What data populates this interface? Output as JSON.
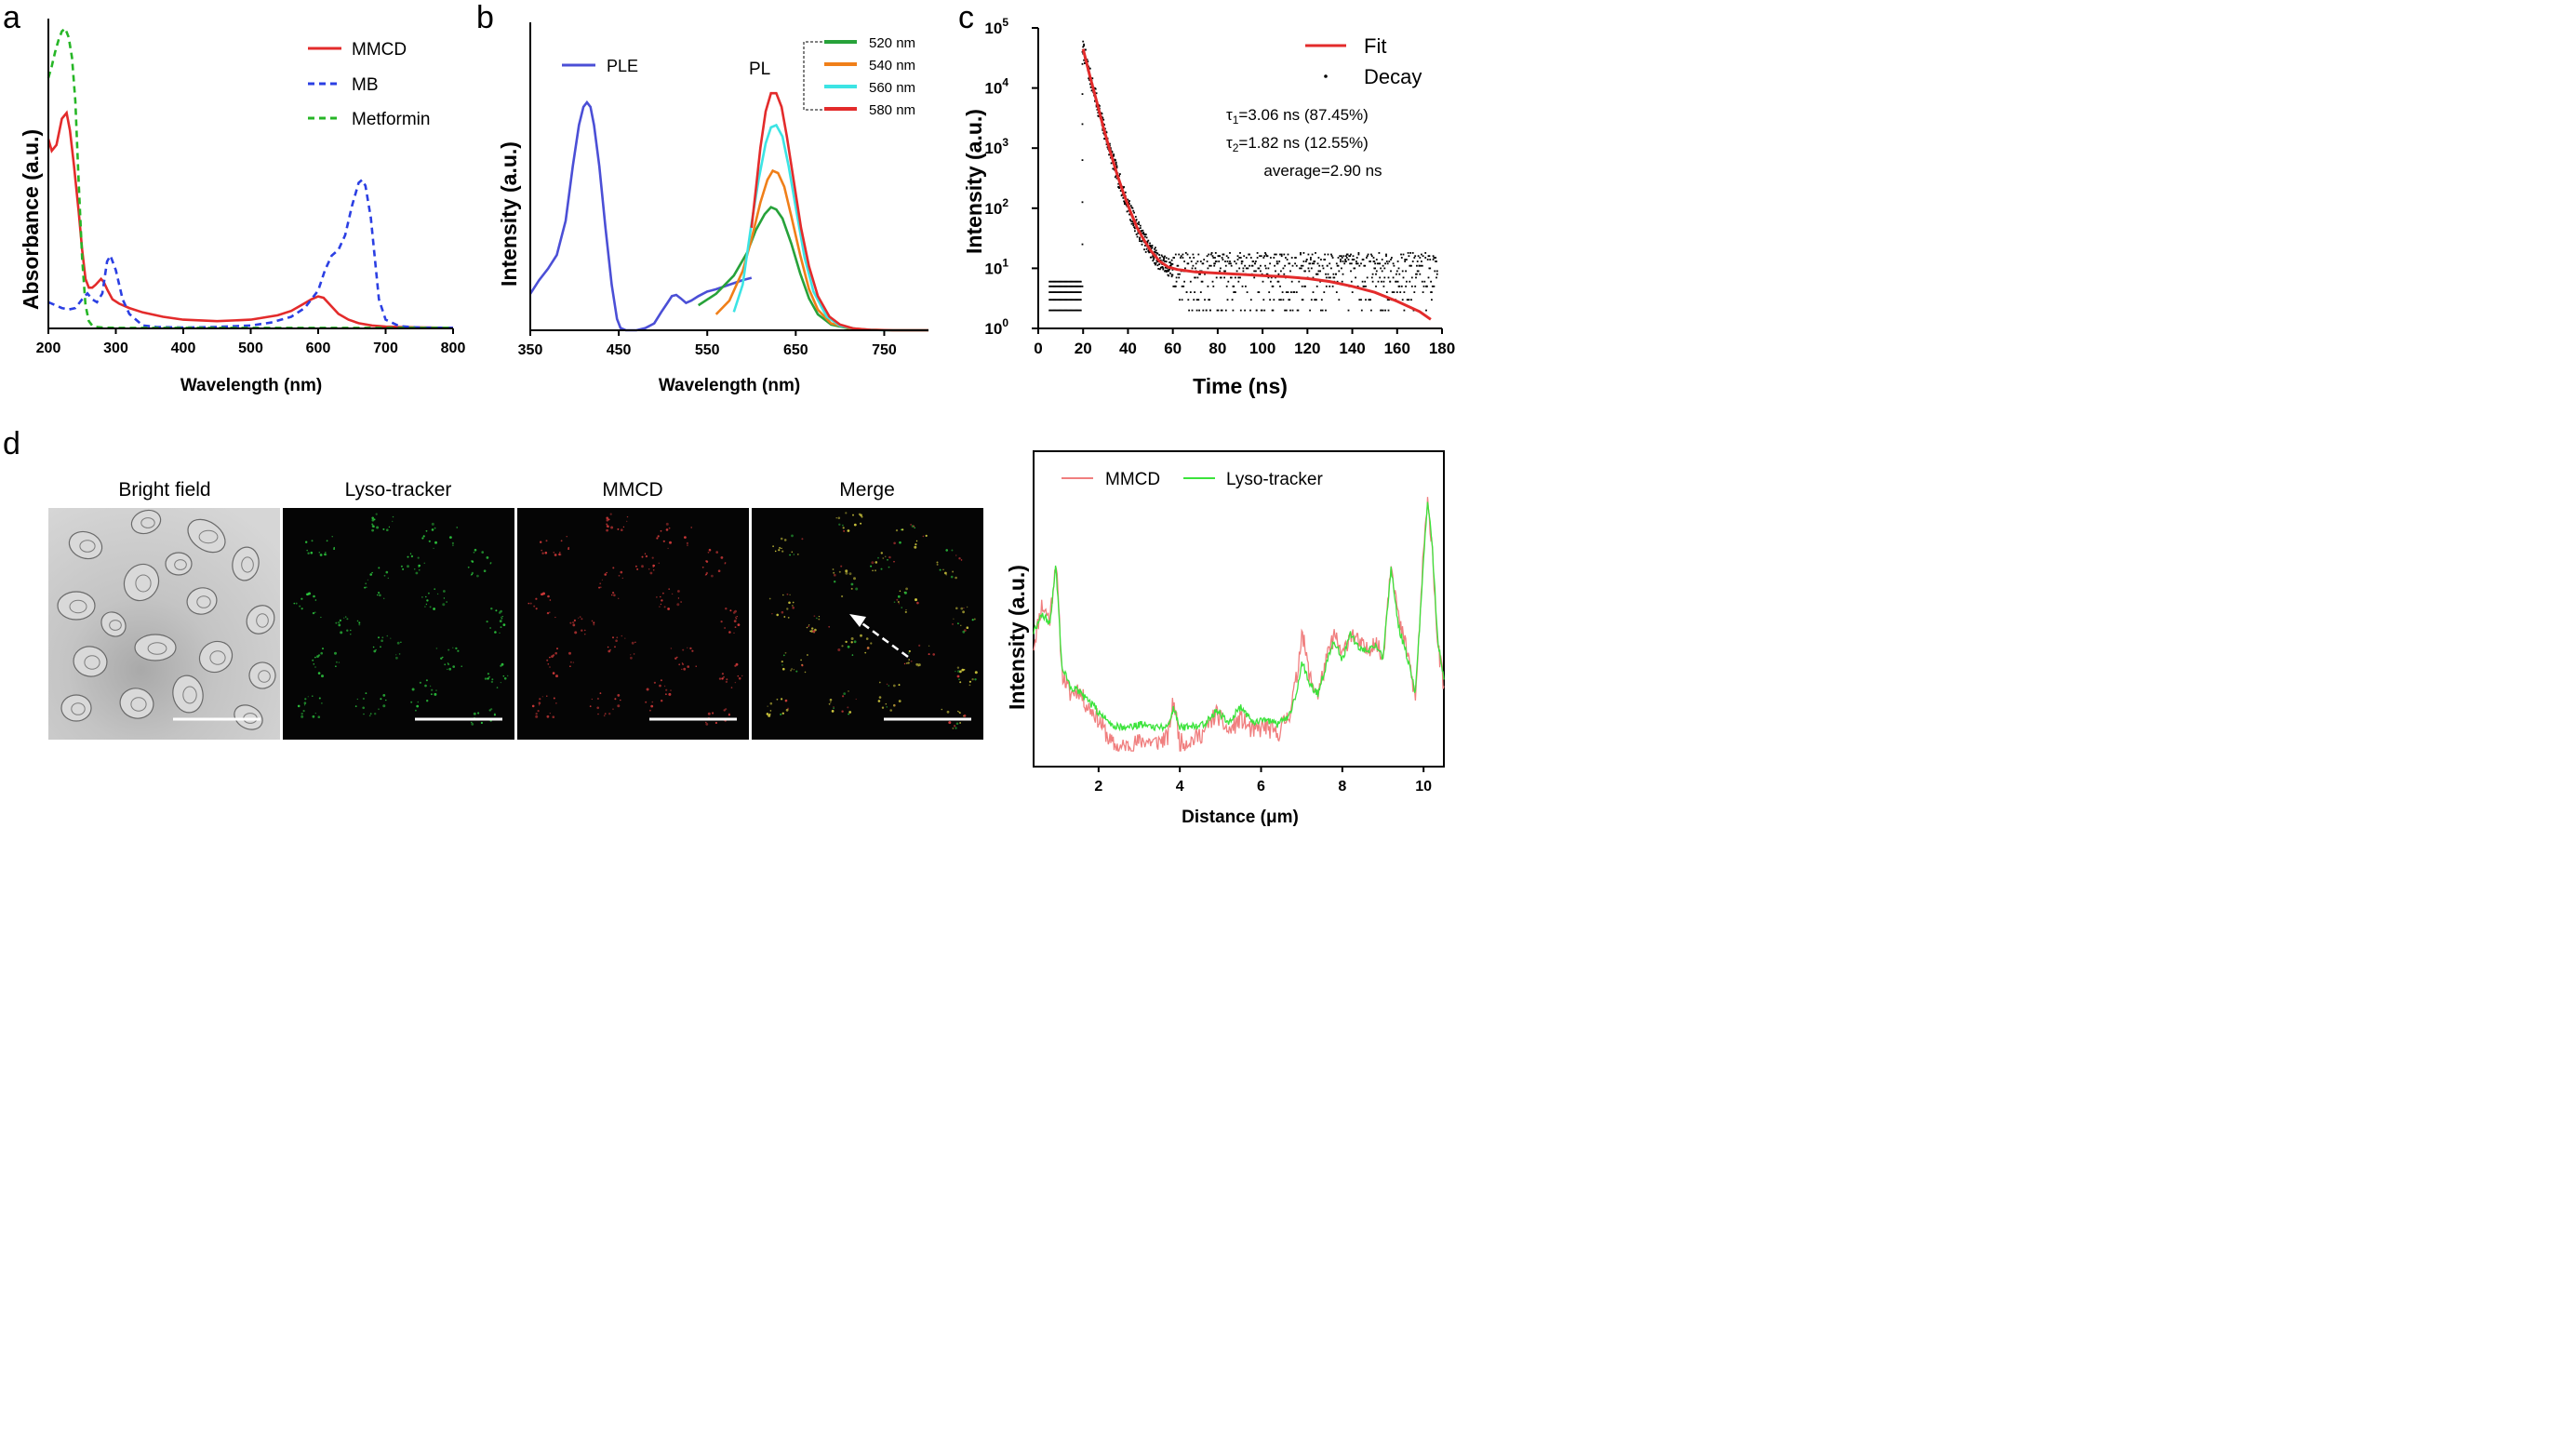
{
  "panel_labels": {
    "a": "a",
    "b": "b",
    "c": "c",
    "d": "d"
  },
  "chart_data": [
    {
      "id": "a",
      "type": "line",
      "xlabel": "Wavelength (nm)",
      "ylabel": "Absorbance (a.u.)",
      "xlim": [
        200,
        800
      ],
      "ylim": [
        0,
        1.0
      ],
      "xticks": [
        "200",
        "300",
        "400",
        "500",
        "600",
        "700",
        "800"
      ],
      "legend_position": "top-right",
      "series": [
        {
          "name": "MMCD",
          "color": "#e32b2b",
          "dash": "solid",
          "x": [
            200,
            205,
            212,
            220,
            227,
            232,
            238,
            245,
            250,
            255,
            260,
            265,
            270,
            278,
            282,
            288,
            295,
            305,
            320,
            340,
            370,
            400,
            450,
            500,
            540,
            560,
            575,
            590,
            600,
            608,
            618,
            630,
            645,
            660,
            680,
            700,
            730,
            760,
            800
          ],
          "y": [
            0.65,
            0.61,
            0.63,
            0.72,
            0.74,
            0.68,
            0.56,
            0.4,
            0.27,
            0.17,
            0.14,
            0.14,
            0.15,
            0.17,
            0.16,
            0.13,
            0.1,
            0.085,
            0.07,
            0.055,
            0.04,
            0.03,
            0.025,
            0.03,
            0.045,
            0.06,
            0.08,
            0.1,
            0.11,
            0.105,
            0.08,
            0.05,
            0.03,
            0.018,
            0.01,
            0.006,
            0.004,
            0.003,
            0.002
          ]
        },
        {
          "name": "MB",
          "color": "#2b3fe3",
          "dash": "dashed",
          "x": [
            200,
            210,
            220,
            230,
            240,
            250,
            258,
            265,
            272,
            280,
            287,
            292,
            300,
            310,
            320,
            340,
            360,
            400,
            450,
            500,
            530,
            560,
            580,
            600,
            610,
            620,
            630,
            640,
            650,
            660,
            665,
            670,
            678,
            690,
            700,
            720,
            750,
            800
          ],
          "y": [
            0.09,
            0.08,
            0.07,
            0.065,
            0.07,
            0.1,
            0.12,
            0.1,
            0.09,
            0.12,
            0.23,
            0.25,
            0.2,
            0.1,
            0.05,
            0.01,
            0.005,
            0.003,
            0.005,
            0.01,
            0.02,
            0.04,
            0.07,
            0.13,
            0.2,
            0.25,
            0.27,
            0.32,
            0.42,
            0.5,
            0.51,
            0.49,
            0.38,
            0.1,
            0.03,
            0.008,
            0.003,
            0.002
          ]
        },
        {
          "name": "Metformin",
          "color": "#26b626",
          "dash": "dashed",
          "x": [
            200,
            205,
            210,
            215,
            220,
            225,
            230,
            235,
            240,
            245,
            250,
            255,
            260,
            265,
            270,
            280,
            300,
            400,
            500,
            600,
            700,
            800
          ],
          "y": [
            0.86,
            0.9,
            0.95,
            0.99,
            1.02,
            1.03,
            1.0,
            0.93,
            0.78,
            0.5,
            0.24,
            0.08,
            0.025,
            0.01,
            0.005,
            0.003,
            0.002,
            0.002,
            0.002,
            0.002,
            0.002,
            0.002
          ]
        }
      ]
    },
    {
      "id": "b",
      "type": "line",
      "xlabel": "Wavelength (nm)",
      "ylabel": "Intensity (a.u.)",
      "xlim": [
        350,
        800
      ],
      "ylim": [
        0,
        1.0
      ],
      "xticks": [
        "350",
        "450",
        "550",
        "650",
        "750"
      ],
      "annotations": {
        "ple": "PLE",
        "pl": "PL"
      },
      "legend_position": "top-right",
      "series": [
        {
          "name": "PLE",
          "color": "#4b4fd6",
          "dash": "solid",
          "x": [
            350,
            360,
            370,
            380,
            390,
            398,
            405,
            410,
            414,
            418,
            422,
            428,
            435,
            442,
            448,
            452,
            458,
            470,
            480,
            490,
            498,
            505,
            510,
            515,
            520,
            526,
            532,
            540,
            550,
            560,
            575,
            590,
            600
          ],
          "y": [
            0.16,
            0.22,
            0.27,
            0.33,
            0.48,
            0.72,
            0.9,
            0.98,
            1.0,
            0.98,
            0.9,
            0.72,
            0.45,
            0.2,
            0.05,
            0.01,
            0.0,
            0.0,
            0.01,
            0.03,
            0.08,
            0.12,
            0.15,
            0.155,
            0.14,
            0.12,
            0.13,
            0.15,
            0.17,
            0.18,
            0.2,
            0.22,
            0.23
          ]
        },
        {
          "name": "520 nm",
          "color": "#27a23a",
          "dash": "solid",
          "x": [
            540,
            560,
            580,
            595,
            605,
            615,
            622,
            628,
            635,
            645,
            655,
            665,
            675,
            690,
            710,
            730,
            760,
            800
          ],
          "y": [
            0.11,
            0.16,
            0.24,
            0.34,
            0.44,
            0.51,
            0.54,
            0.53,
            0.49,
            0.38,
            0.25,
            0.14,
            0.07,
            0.025,
            0.008,
            0.002,
            0.0,
            0.0
          ]
        },
        {
          "name": "540 nm",
          "color": "#f07f19",
          "dash": "solid",
          "x": [
            560,
            575,
            590,
            600,
            610,
            618,
            624,
            630,
            637,
            645,
            655,
            665,
            675,
            690,
            710,
            730,
            760,
            800
          ],
          "y": [
            0.07,
            0.13,
            0.26,
            0.4,
            0.56,
            0.66,
            0.7,
            0.69,
            0.63,
            0.5,
            0.33,
            0.18,
            0.09,
            0.03,
            0.01,
            0.003,
            0.0,
            0.0
          ]
        },
        {
          "name": "560 nm",
          "color": "#3ce4e4",
          "dash": "solid",
          "x": [
            580,
            590,
            600,
            608,
            616,
            622,
            628,
            635,
            642,
            650,
            660,
            670,
            685,
            700,
            720,
            750,
            800
          ],
          "y": [
            0.08,
            0.2,
            0.47,
            0.66,
            0.82,
            0.89,
            0.9,
            0.85,
            0.72,
            0.54,
            0.32,
            0.17,
            0.06,
            0.02,
            0.005,
            0.0,
            0.0
          ]
        },
        {
          "name": "580 nm",
          "color": "#e32b2b",
          "dash": "solid",
          "x": [
            600,
            605,
            610,
            616,
            622,
            628,
            634,
            640,
            648,
            656,
            665,
            675,
            688,
            700,
            715,
            735,
            760,
            800
          ],
          "y": [
            0.45,
            0.62,
            0.8,
            0.96,
            1.04,
            1.04,
            0.98,
            0.85,
            0.65,
            0.45,
            0.28,
            0.15,
            0.06,
            0.025,
            0.008,
            0.002,
            0.0,
            0.0
          ]
        }
      ]
    },
    {
      "id": "c",
      "type": "scatter",
      "xlabel": "Time (ns)",
      "ylabel": "Intensity (a.u.)",
      "xlim": [
        0,
        180
      ],
      "ylim_log10": [
        0,
        5
      ],
      "xticks": [
        "0",
        "20",
        "40",
        "60",
        "80",
        "100",
        "120",
        "140",
        "160",
        "180"
      ],
      "yticks": [
        {
          "base": "10",
          "exp": "0"
        },
        {
          "base": "10",
          "exp": "1"
        },
        {
          "base": "10",
          "exp": "2"
        },
        {
          "base": "10",
          "exp": "3"
        },
        {
          "base": "10",
          "exp": "4"
        },
        {
          "base": "10",
          "exp": "5"
        }
      ],
      "legend_position": "top-right",
      "legend": [
        {
          "name": "Fit",
          "color": "#e32b2b",
          "kind": "line"
        },
        {
          "name": "Decay",
          "color": "#000000",
          "kind": "point"
        }
      ],
      "fit": {
        "t": [
          20,
          23,
          26,
          29,
          32,
          35,
          38,
          41,
          44,
          47,
          50,
          54,
          58,
          62,
          66,
          70,
          80,
          90,
          100,
          110,
          120,
          130,
          140,
          150,
          160,
          170,
          175
        ],
        "log10_i": [
          4.65,
          4.2,
          3.78,
          3.35,
          2.95,
          2.58,
          2.25,
          1.95,
          1.68,
          1.48,
          1.3,
          1.12,
          1.02,
          0.98,
          0.96,
          0.94,
          0.92,
          0.9,
          0.88,
          0.86,
          0.83,
          0.78,
          0.7,
          0.6,
          0.45,
          0.28,
          0.15
        ]
      },
      "decay_model": {
        "tau1_ns": 3.06,
        "tau1_fraction": 87.45,
        "tau2_ns": 1.82,
        "tau2_fraction": 12.55,
        "average_ns": 2.9
      },
      "annotations": {
        "tau1": {
          "symbol": "τ",
          "sub": "1",
          "rest": "=3.06 ns (87.45%)"
        },
        "tau2": {
          "symbol": "τ",
          "sub": "2",
          "rest": "=1.82 ns (12.55%)"
        },
        "average": "average=2.90 ns"
      }
    },
    {
      "id": "d-profile",
      "type": "line",
      "xlabel": "Distance (μm)",
      "ylabel": "Intensity (a.u.)",
      "xlim": [
        0.4,
        10.5
      ],
      "ylim": [
        0,
        1.0
      ],
      "xticks": [
        "2",
        "4",
        "6",
        "8",
        "10"
      ],
      "legend_position": "top",
      "series": [
        {
          "name": "MMCD",
          "color": "#f07f7f",
          "dash": "solid",
          "x": [
            0.4,
            0.6,
            0.8,
            0.95,
            1.1,
            1.3,
            1.5,
            1.7,
            1.9,
            2.1,
            2.3,
            2.5,
            2.8,
            3.1,
            3.4,
            3.7,
            3.85,
            4.0,
            4.3,
            4.6,
            4.9,
            5.2,
            5.5,
            5.8,
            6.1,
            6.4,
            6.7,
            6.9,
            7.0,
            7.2,
            7.4,
            7.6,
            7.8,
            8.0,
            8.2,
            8.4,
            8.6,
            8.8,
            9.0,
            9.2,
            9.4,
            9.6,
            9.8,
            10.0,
            10.1,
            10.2,
            10.35,
            10.5
          ],
          "y": [
            0.4,
            0.55,
            0.5,
            0.72,
            0.3,
            0.22,
            0.24,
            0.18,
            0.15,
            0.1,
            0.04,
            0.02,
            0.03,
            0.05,
            0.04,
            0.06,
            0.2,
            0.04,
            0.05,
            0.08,
            0.15,
            0.08,
            0.13,
            0.08,
            0.1,
            0.07,
            0.15,
            0.3,
            0.46,
            0.28,
            0.22,
            0.34,
            0.44,
            0.36,
            0.45,
            0.41,
            0.38,
            0.42,
            0.35,
            0.72,
            0.48,
            0.38,
            0.2,
            0.75,
            0.92,
            0.8,
            0.4,
            0.25
          ]
        },
        {
          "name": "Lyso-tracker",
          "color": "#3be33b",
          "dash": "solid",
          "x": [
            0.4,
            0.6,
            0.8,
            0.95,
            1.1,
            1.3,
            1.5,
            1.7,
            1.9,
            2.1,
            2.3,
            2.5,
            2.8,
            3.1,
            3.4,
            3.7,
            3.85,
            4.0,
            4.3,
            4.6,
            4.9,
            5.2,
            5.5,
            5.8,
            6.1,
            6.4,
            6.7,
            6.9,
            7.0,
            7.2,
            7.4,
            7.6,
            7.8,
            8.0,
            8.2,
            8.4,
            8.6,
            8.8,
            9.0,
            9.2,
            9.4,
            9.6,
            9.8,
            10.0,
            10.1,
            10.2,
            10.35,
            10.5
          ],
          "y": [
            0.45,
            0.52,
            0.48,
            0.7,
            0.32,
            0.25,
            0.23,
            0.2,
            0.17,
            0.14,
            0.11,
            0.1,
            0.1,
            0.11,
            0.1,
            0.1,
            0.17,
            0.1,
            0.1,
            0.11,
            0.16,
            0.12,
            0.17,
            0.12,
            0.12,
            0.11,
            0.14,
            0.24,
            0.34,
            0.26,
            0.22,
            0.33,
            0.42,
            0.35,
            0.44,
            0.4,
            0.37,
            0.4,
            0.36,
            0.68,
            0.46,
            0.36,
            0.22,
            0.72,
            0.93,
            0.8,
            0.42,
            0.28
          ]
        }
      ]
    }
  ],
  "microscopy": {
    "titles": [
      "Bright field",
      "Lyso-tracker",
      "MMCD",
      "Merge"
    ],
    "colors": {
      "bright": "#c9c9c9",
      "dark": "#050505",
      "green": "#2ecc40",
      "red": "#d83b3b",
      "yellow": "#d8d040",
      "scalebar": "#ffffff"
    }
  }
}
